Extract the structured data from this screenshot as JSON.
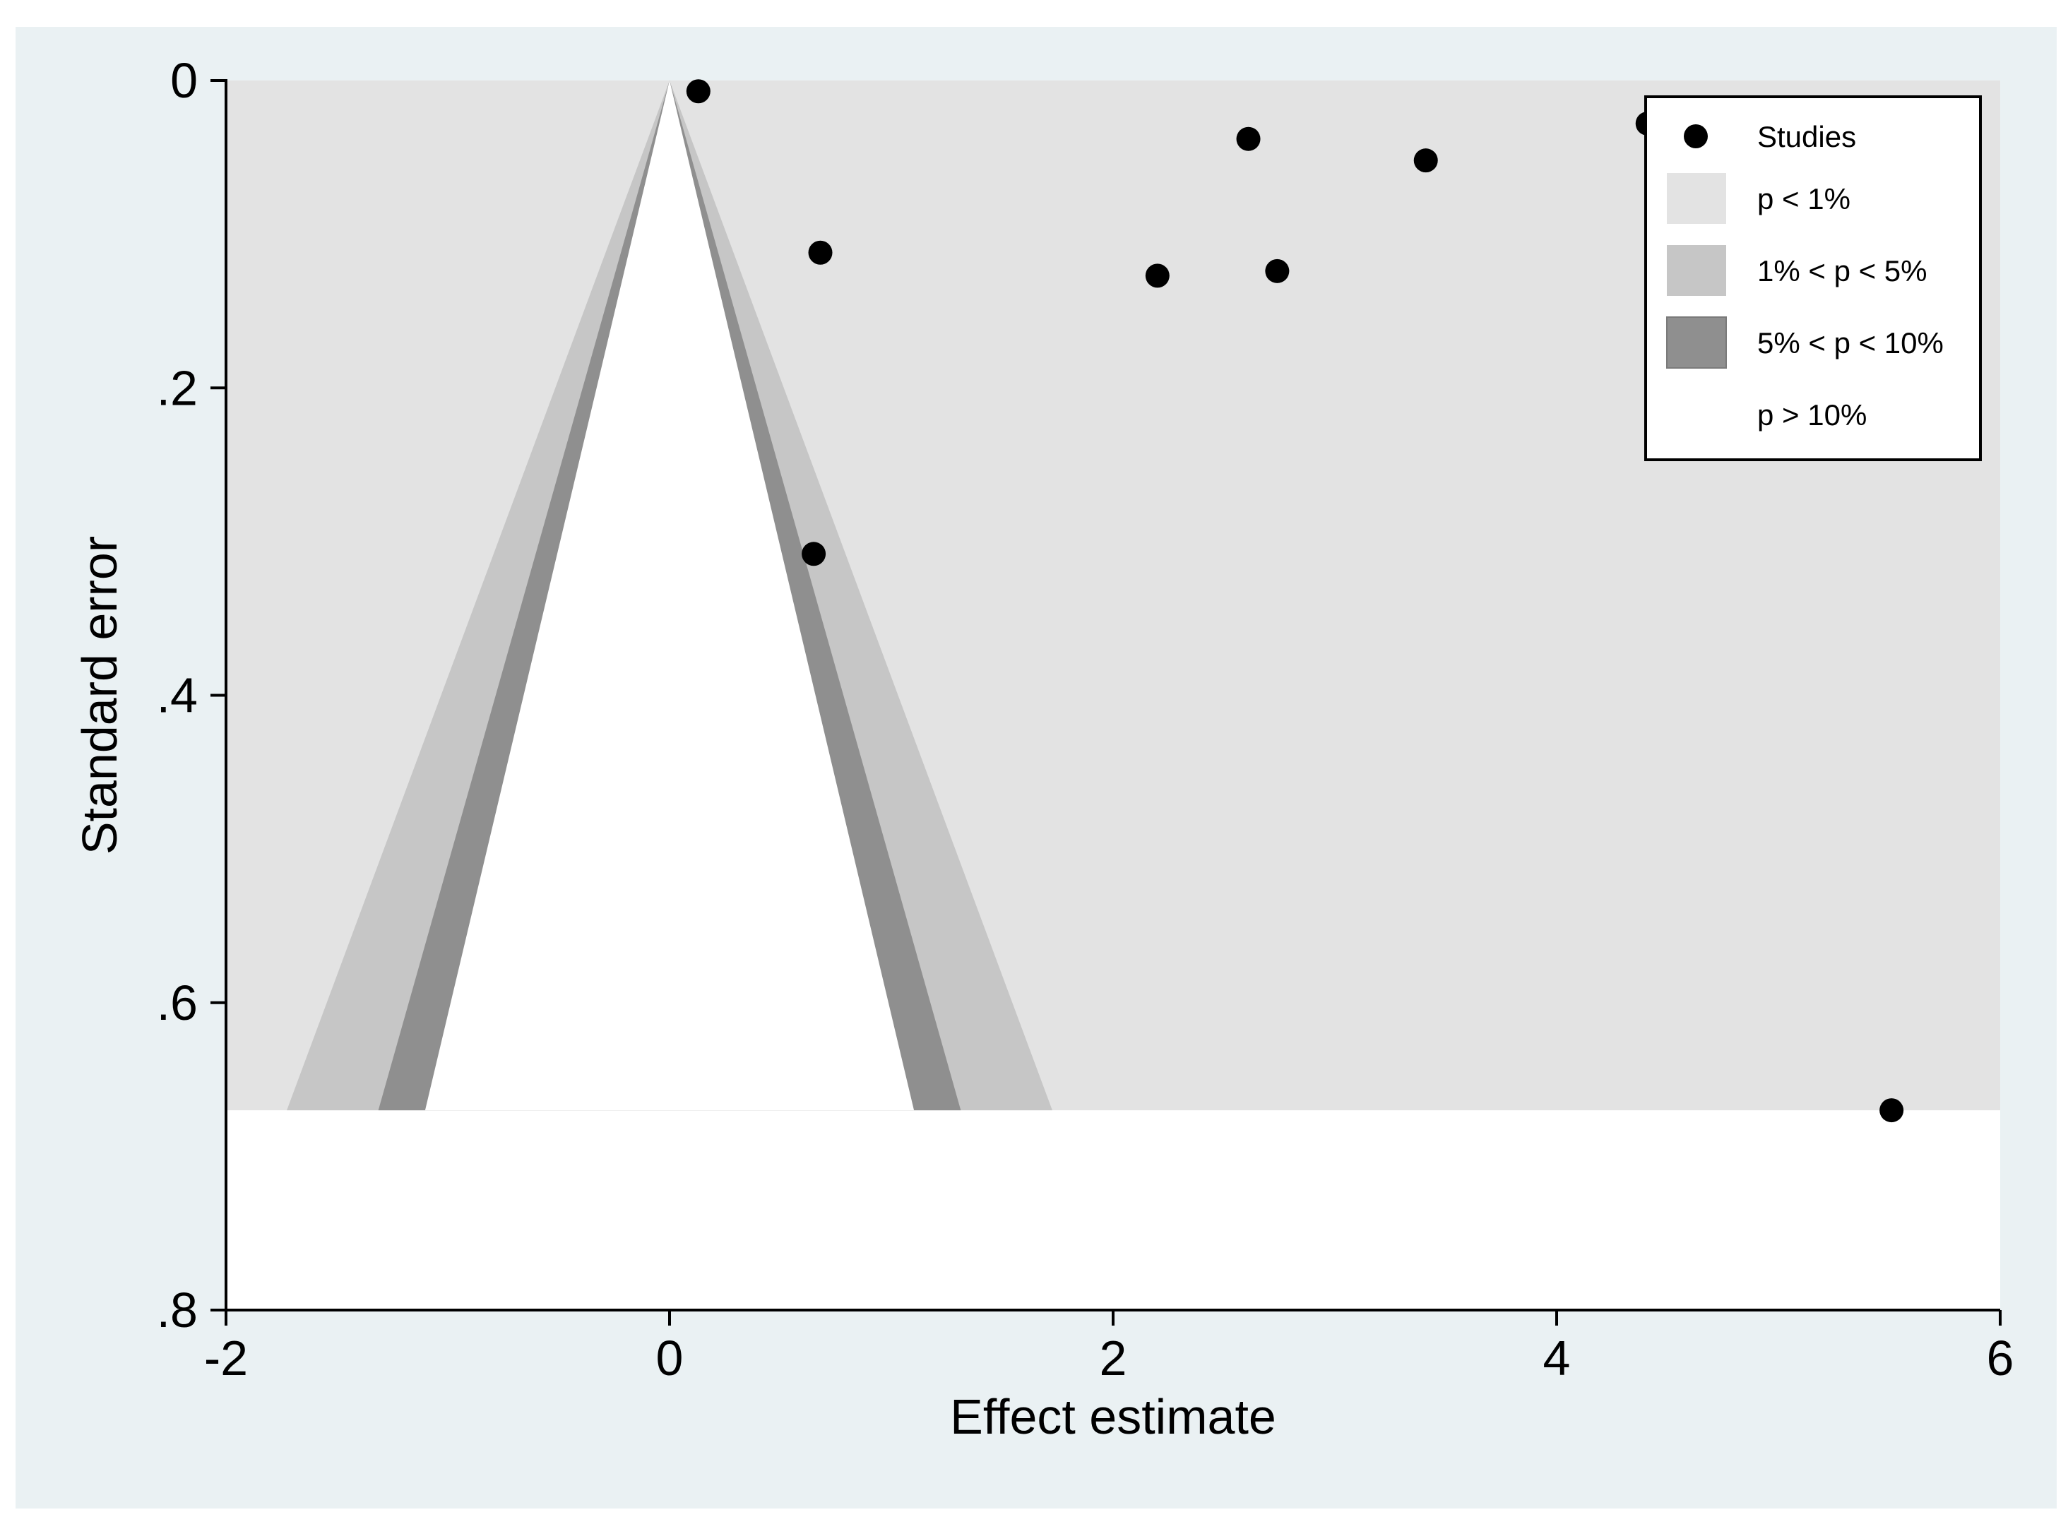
{
  "chart_data": {
    "type": "scatter",
    "subtype": "contour-enhanced funnel plot",
    "title": "",
    "xlabel": "Effect estimate",
    "ylabel": "Standard error",
    "xlim": [
      -2,
      6
    ],
    "ylim": [
      0,
      0.8
    ],
    "y_reversed": true,
    "x_ticks": [
      -2,
      0,
      2,
      4,
      6
    ],
    "x_tick_labels": [
      "-2",
      "0",
      "2",
      "4",
      "6"
    ],
    "y_ticks": [
      0,
      0.2,
      0.4,
      0.6,
      0.8
    ],
    "y_tick_labels": [
      "0",
      ".2",
      ".4",
      ".6",
      ".8"
    ],
    "grid": false,
    "legend_position": "top-right",
    "series": [
      {
        "name": "Studies",
        "points": [
          {
            "x": 0.13,
            "y": 0.007
          },
          {
            "x": 0.68,
            "y": 0.112
          },
          {
            "x": 0.65,
            "y": 0.308
          },
          {
            "x": 2.2,
            "y": 0.127
          },
          {
            "x": 2.61,
            "y": 0.038
          },
          {
            "x": 2.74,
            "y": 0.124
          },
          {
            "x": 3.41,
            "y": 0.052
          },
          {
            "x": 4.41,
            "y": 0.028
          },
          {
            "x": 5.51,
            "y": 0.67
          }
        ]
      }
    ],
    "contours": [
      {
        "label": "p < 1%",
        "z": 2.576,
        "color": "#e3e3e3"
      },
      {
        "label": "1% < p < 5%",
        "z": 1.96,
        "color": "#c6c6c6"
      },
      {
        "label": "5% < p < 10%",
        "z": 1.645,
        "color": "#8f8f8f"
      },
      {
        "label": "p > 10%",
        "color": "#ffffff"
      }
    ],
    "contour_max_se": 0.67,
    "colors": {
      "outer_background": "#eaf1f3",
      "plot_background": "#ffffff",
      "marker": "#000000",
      "axis": "#000000"
    }
  }
}
